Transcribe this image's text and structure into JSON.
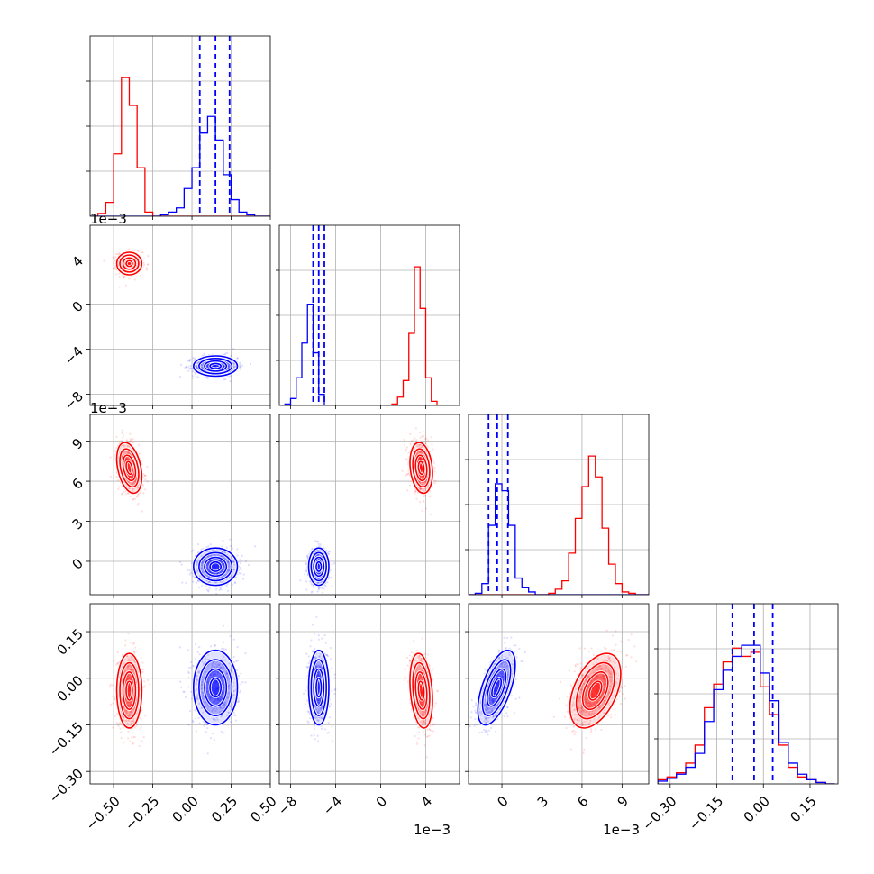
{
  "figure": {
    "type": "corner_plot"
  },
  "colors": {
    "series_a": "#ff0000",
    "series_b": "#0000ff",
    "grid": "#b0b0b0",
    "frame": "#000000"
  },
  "chart_data": {
    "type": "scatter",
    "subtype": "corner",
    "parameters": [
      {
        "name": "",
        "scale_label": "",
        "range": [
          -0.65,
          0.5
        ],
        "ticks": [
          -0.5,
          -0.25,
          0.0,
          0.25,
          0.5
        ],
        "tick_labels": [
          "−0.50",
          "−0.25",
          "0.00",
          "0.25",
          "0.50"
        ]
      },
      {
        "name": "",
        "scale_label": "1e−3",
        "range": [
          -9.0,
          7.0
        ],
        "ticks": [
          -8,
          -4,
          0,
          4
        ],
        "tick_labels": [
          "−8",
          "−4",
          "0",
          "4"
        ]
      },
      {
        "name": "",
        "scale_label": "1e−3",
        "range": [
          -2.5,
          11.0
        ],
        "ticks": [
          0,
          3,
          6,
          9
        ],
        "tick_labels": [
          "0",
          "3",
          "6",
          "9"
        ]
      },
      {
        "name": "",
        "scale_label": "",
        "range": [
          -0.34,
          0.24
        ],
        "ticks": [
          -0.3,
          -0.15,
          0.0,
          0.15
        ],
        "tick_labels": [
          "−0.30",
          "−0.15",
          "0.00",
          "0.15"
        ]
      }
    ],
    "series": [
      {
        "color": "red",
        "mean": [
          -0.4,
          3.6,
          7.0,
          -0.04
        ],
        "std": [
          0.04,
          0.5,
          0.95,
          0.06
        ],
        "quantiles_shown": false
      },
      {
        "color": "blue",
        "mean": [
          0.15,
          -5.5,
          -0.4,
          -0.03
        ],
        "std": [
          0.07,
          0.45,
          0.7,
          0.06
        ],
        "quantiles_shown": true,
        "quantiles": [
          [
            0.05,
            0.15,
            0.24
          ],
          [
            -6.0,
            -5.5,
            -5.0
          ],
          [
            -1.0,
            -0.35,
            0.45
          ],
          [
            -0.1,
            -0.03,
            0.03
          ]
        ]
      }
    ],
    "histograms": [
      {
        "bin_edges": [
          -0.65,
          -0.6,
          -0.55,
          -0.5,
          -0.45,
          -0.4,
          -0.35,
          -0.3,
          -0.25,
          -0.2,
          -0.15,
          -0.1,
          -0.05,
          0.0,
          0.05,
          0.1,
          0.15,
          0.2,
          0.25,
          0.3,
          0.35,
          0.4,
          0.45,
          0.5
        ],
        "red": [
          0,
          2,
          10,
          45,
          100,
          80,
          35,
          3,
          0,
          0,
          0,
          0,
          0,
          0,
          0,
          0,
          0,
          0,
          0,
          0,
          0,
          0,
          0
        ],
        "blue": [
          0,
          0,
          0,
          0,
          0,
          0,
          0,
          0,
          0,
          1,
          3,
          6,
          20,
          35,
          60,
          72,
          55,
          30,
          12,
          3,
          1,
          0,
          0
        ]
      },
      {
        "bin_edges": [
          -9.0,
          -8.5,
          -8.0,
          -7.5,
          -7.0,
          -6.5,
          -6.0,
          -5.5,
          -5.0,
          -4.5,
          -4.0,
          -3.5,
          -3.0,
          -2.5,
          -2.0,
          -1.5,
          -1.0,
          -0.5,
          0.0,
          0.5,
          1.0,
          1.5,
          2.0,
          2.5,
          3.0,
          3.5,
          4.0,
          4.5,
          5.0,
          5.5,
          6.0,
          6.5,
          7.0
        ],
        "red": [
          0,
          0,
          0,
          0,
          0,
          0,
          0,
          0,
          0,
          0,
          0,
          0,
          0,
          0,
          0,
          0,
          0,
          0,
          0,
          0,
          1,
          6,
          18,
          52,
          100,
          70,
          20,
          3,
          0,
          0,
          0,
          0
        ],
        "blue": [
          0,
          1,
          5,
          20,
          45,
          73,
          38,
          8,
          0,
          0,
          0,
          0,
          0,
          0,
          0,
          0,
          0,
          0,
          0,
          0,
          0,
          0,
          0,
          0,
          0,
          0,
          0,
          0,
          0,
          0,
          0,
          0
        ]
      },
      {
        "bin_edges": [
          -2.5,
          -2.0,
          -1.5,
          -1.0,
          -0.5,
          0.0,
          0.5,
          1.0,
          1.5,
          2.0,
          2.5,
          3.0,
          3.5,
          4.0,
          4.5,
          5.0,
          5.5,
          6.0,
          6.5,
          7.0,
          7.5,
          8.0,
          8.5,
          9.0,
          9.5,
          10.0,
          10.5,
          11.0
        ],
        "red": [
          0,
          0,
          0,
          0,
          0,
          0,
          0,
          0,
          0,
          0,
          0,
          0,
          1,
          4,
          10,
          30,
          55,
          78,
          100,
          85,
          48,
          22,
          8,
          2,
          1,
          0,
          0
        ],
        "blue": [
          0,
          1,
          8,
          50,
          80,
          75,
          50,
          12,
          5,
          2,
          0,
          0,
          0,
          0,
          0,
          0,
          0,
          0,
          0,
          0,
          0,
          0,
          0,
          0,
          0,
          0,
          0
        ]
      },
      {
        "bin_edges": [
          -0.34,
          -0.31,
          -0.28,
          -0.25,
          -0.22,
          -0.19,
          -0.16,
          -0.13,
          -0.1,
          -0.07,
          -0.04,
          -0.01,
          0.02,
          0.05,
          0.08,
          0.11,
          0.14,
          0.17,
          0.2,
          0.23
        ],
        "red": [
          3,
          5,
          8,
          15,
          28,
          55,
          72,
          88,
          98,
          92,
          95,
          70,
          50,
          28,
          12,
          5,
          3,
          1,
          0
        ],
        "blue": [
          2,
          4,
          7,
          12,
          22,
          45,
          68,
          82,
          92,
          100,
          100,
          80,
          60,
          30,
          15,
          7,
          3,
          1,
          0
        ]
      }
    ],
    "grid": true,
    "legend": "none",
    "contour_levels": 3
  }
}
